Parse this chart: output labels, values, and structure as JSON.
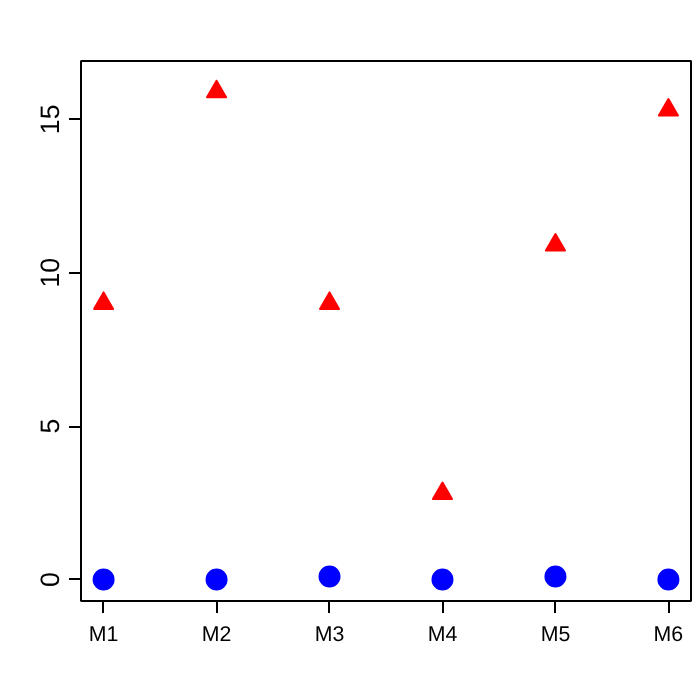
{
  "chart_data": {
    "type": "scatter",
    "categories": [
      "M1",
      "M2",
      "M3",
      "M4",
      "M5",
      "M6"
    ],
    "series": [
      {
        "color": "#0000ff",
        "marker": "circle",
        "values": [
          0.0,
          0.0,
          0.1,
          0.0,
          0.1,
          0.0
        ]
      },
      {
        "color": "#ff0000",
        "marker": "triangle",
        "values": [
          9.0,
          15.9,
          9.0,
          2.8,
          10.9,
          15.3
        ]
      }
    ],
    "ylim": [
      -0.7,
      16.9
    ],
    "yticks": [
      0,
      5,
      10,
      15
    ],
    "grid": false
  }
}
